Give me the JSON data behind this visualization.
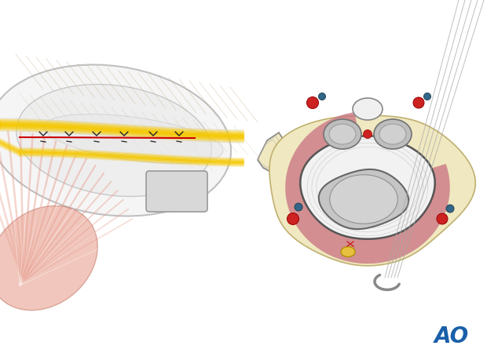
{
  "bg_color": "#ffffff",
  "ao_text": "AO",
  "ao_color": "#1a5fa8",
  "ao_fontsize": 20,
  "left": {
    "nerve_yellow": "#f5c800",
    "nerve_yellow_dark": "#c9a200",
    "tissue_light": "#f0f0f0",
    "tissue_mid": "#e0e0e0",
    "tissue_outline": "#b0b0b0",
    "muscle_pink": "#e8a090",
    "muscle_dark": "#d08070",
    "red_line": "#cc0000",
    "suture_black": "#222222",
    "hatch_color": "#ccb898",
    "fascial_gray": "#d8d8d8"
  },
  "right": {
    "outer_beige": "#f0e8c0",
    "outer_beige_edge": "#c8b880",
    "muscle_pink": "#c8607080",
    "muscle_pink_solid": "#c86070",
    "capsule_white": "#f5f5f5",
    "capsule_edge": "#444444",
    "bone_gray": "#c0c0c0",
    "bone_light": "#d5d5d5",
    "tendon_gray": "#b8b8b8",
    "white_struct": "#f0f0f0",
    "red_dot": "#cc2222",
    "blue_dot": "#2266aa",
    "teal_dot": "#336688",
    "yellow_oval": "#e8c040",
    "needle_gray": "#888888",
    "thread_gray": "#aaaaaa",
    "suture_red": "#cc2222"
  }
}
